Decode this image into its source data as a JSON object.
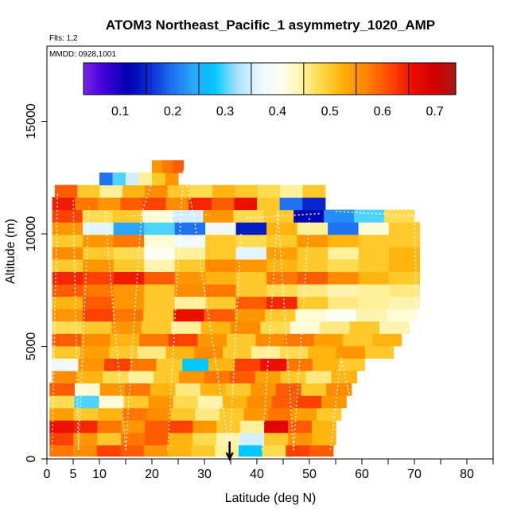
{
  "chart_data": {
    "type": "heatmap",
    "title": "ATOM3 Northeast_Pacific_1 asymmetry_1020_AMP",
    "subtitle_flights": "Flts: 1,2",
    "subtitle_dates": "MMDD: 0928,1001",
    "xlabel": "Latitude (deg N)",
    "ylabel": "Altitude (m)",
    "xlim": [
      0,
      85
    ],
    "ylim": [
      0,
      17500
    ],
    "x_ticks": [
      0,
      5,
      10,
      20,
      30,
      40,
      50,
      60,
      70,
      80
    ],
    "y_ticks": [
      0,
      5000,
      10000,
      15000
    ],
    "colorbar": {
      "range": [
        0.03,
        0.74
      ],
      "ticks": [
        0.1,
        0.2,
        0.3,
        0.4,
        0.5,
        0.6,
        0.7
      ],
      "tick_labels": [
        "0.1",
        "0.2",
        "0.3",
        "0.4",
        "0.5",
        "0.6",
        "0.7"
      ],
      "colors": [
        "#7b22e8",
        "#3d00d8",
        "#0000b0",
        "#0a2ad0",
        "#1e6ff0",
        "#2aa6ff",
        "#00c8ff",
        "#a8e0ff",
        "#e8f6ff",
        "#fffff2",
        "#fff2a0",
        "#ffd43a",
        "#ffa800",
        "#ff7f00",
        "#ff4800",
        "#ee1000",
        "#d40000",
        "#a81818"
      ]
    },
    "marker": {
      "latitude": 34.8,
      "label": "arrow"
    },
    "layers": [
      {
        "alt": 400,
        "from": 0.5,
        "to": 54.5,
        "v": [
          0.58,
          0.56,
          0.62,
          0.6,
          0.55,
          0.52,
          0.5,
          0.45,
          0.28,
          0.48,
          0.62,
          0.6
        ]
      },
      {
        "alt": 900,
        "from": 0.5,
        "to": 55,
        "v": [
          0.62,
          0.55,
          0.5,
          0.58,
          0.6,
          0.52,
          0.48,
          0.44,
          0.35,
          0.5,
          0.55,
          0.52
        ]
      },
      {
        "alt": 1450,
        "from": 0.5,
        "to": 55,
        "v": [
          0.66,
          0.64,
          0.58,
          0.55,
          0.6,
          0.62,
          0.55,
          0.5,
          0.45,
          0.68,
          0.6,
          0.52
        ]
      },
      {
        "alt": 2000,
        "from": 0.5,
        "to": 56,
        "v": [
          0.54,
          0.5,
          0.52,
          0.58,
          0.56,
          0.5,
          0.46,
          0.5,
          0.55,
          0.58,
          0.54,
          0.5
        ]
      },
      {
        "alt": 2550,
        "from": 0.5,
        "to": 57,
        "v": [
          0.48,
          0.3,
          0.42,
          0.5,
          0.55,
          0.48,
          0.44,
          0.52,
          0.56,
          0.6,
          0.62,
          0.55
        ]
      },
      {
        "alt": 3100,
        "from": 0.5,
        "to": 58,
        "v": [
          0.6,
          0.42,
          0.55,
          0.58,
          0.52,
          0.46,
          0.52,
          0.5,
          0.55,
          0.6,
          0.5,
          0.56
        ]
      },
      {
        "alt": 3650,
        "from": 1,
        "to": 59,
        "v": [
          0.56,
          0.52,
          0.48,
          0.45,
          0.5,
          0.55,
          0.58,
          0.6,
          0.54,
          0.5,
          0.46,
          0.52
        ]
      },
      {
        "alt": 4200,
        "from": 1,
        "to": 60.5,
        "v": [
          0.38,
          0.55,
          0.62,
          0.58,
          0.5,
          0.28,
          0.52,
          0.62,
          0.66,
          0.58,
          0.52,
          0.5
        ]
      },
      {
        "alt": 4750,
        "from": 1,
        "to": 66,
        "v": [
          0.5,
          0.54,
          0.5,
          0.46,
          0.52,
          0.56,
          0.5,
          0.45,
          0.48,
          0.52,
          0.55,
          0.5
        ]
      },
      {
        "alt": 5300,
        "from": 1,
        "to": 67.5,
        "v": [
          0.6,
          0.56,
          0.52,
          0.58,
          0.62,
          0.55,
          0.5,
          0.56,
          0.58,
          0.54,
          0.5,
          0.52
        ]
      },
      {
        "alt": 5850,
        "from": 1,
        "to": 69,
        "v": [
          0.48,
          0.5,
          0.55,
          0.5,
          0.45,
          0.52,
          0.56,
          0.48,
          0.42,
          0.46,
          0.5,
          0.44
        ]
      },
      {
        "alt": 6400,
        "from": 1,
        "to": 70.5,
        "v": [
          0.55,
          0.62,
          0.58,
          0.5,
          0.66,
          0.6,
          0.55,
          0.5,
          0.42,
          0.4,
          0.44,
          0.42
        ]
      },
      {
        "alt": 6950,
        "from": 1,
        "to": 71,
        "v": [
          0.52,
          0.6,
          0.55,
          0.5,
          0.45,
          0.5,
          0.6,
          0.64,
          0.5,
          0.46,
          0.45,
          0.44
        ]
      },
      {
        "alt": 7500,
        "from": 1,
        "to": 71,
        "v": [
          0.6,
          0.58,
          0.55,
          0.5,
          0.56,
          0.58,
          0.5,
          0.48,
          0.46,
          0.44,
          0.45,
          0.46
        ]
      },
      {
        "alt": 8050,
        "from": 1,
        "to": 71,
        "v": [
          0.64,
          0.62,
          0.65,
          0.6,
          0.55,
          0.52,
          0.5,
          0.58,
          0.6,
          0.56,
          0.52,
          0.5
        ]
      },
      {
        "alt": 8600,
        "from": 1,
        "to": 71,
        "v": [
          0.5,
          0.55,
          0.5,
          0.44,
          0.5,
          0.56,
          0.55,
          0.52,
          0.5,
          0.48,
          0.5,
          0.52
        ]
      },
      {
        "alt": 9150,
        "from": 1,
        "to": 71,
        "v": [
          0.56,
          0.5,
          0.48,
          0.4,
          0.45,
          0.5,
          0.36,
          0.54,
          0.5,
          0.45,
          0.5,
          0.52
        ]
      },
      {
        "alt": 9700,
        "from": 1,
        "to": 71,
        "v": [
          0.5,
          0.55,
          0.58,
          0.42,
          0.38,
          0.5,
          0.48,
          0.5,
          0.55,
          0.52,
          0.5,
          0.5
        ]
      },
      {
        "alt": 10250,
        "from": 1,
        "to": 71,
        "v": [
          0.55,
          0.36,
          0.24,
          0.3,
          0.2,
          0.38,
          0.14,
          0.52,
          0.45,
          0.2,
          0.42,
          0.5
        ]
      },
      {
        "alt": 10800,
        "from": 1,
        "to": 70,
        "v": [
          0.62,
          0.48,
          0.5,
          0.42,
          0.35,
          0.55,
          0.48,
          0.5,
          0.12,
          0.22,
          0.3,
          0.48
        ]
      },
      {
        "alt": 11350,
        "from": 1,
        "to": 53,
        "v": [
          0.65,
          0.58,
          0.55,
          0.6,
          0.62,
          0.56,
          0.64,
          0.6,
          0.66,
          0.5,
          0.2,
          0.15
        ]
      },
      {
        "alt": 11900,
        "from": 1.5,
        "to": 53,
        "v": [
          0.6,
          0.5,
          0.45,
          0.52,
          0.56,
          0.5,
          0.48,
          0.52,
          0.5,
          0.48,
          0.45,
          0.5
        ]
      },
      {
        "alt": 12450,
        "from": 10,
        "to": 25,
        "v": [
          0.2,
          0.3,
          0.35,
          0.45,
          0.5,
          0.55
        ]
      },
      {
        "alt": 13000,
        "from": 20,
        "to": 26,
        "v": [
          0.55,
          0.58,
          0.6
        ]
      }
    ]
  }
}
